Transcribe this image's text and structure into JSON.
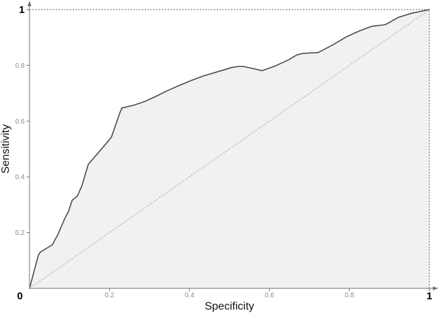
{
  "chart_data": {
    "type": "area",
    "title": "",
    "xlabel": "Specificity",
    "ylabel": "Sensitivity",
    "xlim": [
      0,
      1
    ],
    "ylim": [
      0,
      1
    ],
    "grid": false,
    "legend": "none",
    "origin_label": "0",
    "x_ticks": [
      {
        "v": 0.2,
        "label": "0.2",
        "emph": false
      },
      {
        "v": 0.4,
        "label": "0.4",
        "emph": false
      },
      {
        "v": 0.6,
        "label": "0.6",
        "emph": false
      },
      {
        "v": 0.8,
        "label": "0.8",
        "emph": false
      },
      {
        "v": 1,
        "label": "1",
        "emph": true
      }
    ],
    "y_ticks": [
      {
        "v": 0.2,
        "label": "0.2",
        "emph": false
      },
      {
        "v": 0.4,
        "label": "0.4",
        "emph": false
      },
      {
        "v": 0.6,
        "label": "0.6",
        "emph": false
      },
      {
        "v": 0.8,
        "label": "0.8",
        "emph": false
      },
      {
        "v": 1,
        "label": "1",
        "emph": true
      }
    ],
    "series": [
      {
        "name": "roc-curve",
        "type": "line",
        "filled": true,
        "points": [
          [
            0,
            0
          ],
          [
            0.022,
            0.118
          ],
          [
            0.027,
            0.13
          ],
          [
            0.057,
            0.156
          ],
          [
            0.063,
            0.172
          ],
          [
            0.07,
            0.19
          ],
          [
            0.088,
            0.25
          ],
          [
            0.098,
            0.277
          ],
          [
            0.103,
            0.3
          ],
          [
            0.107,
            0.317
          ],
          [
            0.113,
            0.323
          ],
          [
            0.12,
            0.332
          ],
          [
            0.131,
            0.368
          ],
          [
            0.147,
            0.445
          ],
          [
            0.152,
            0.453
          ],
          [
            0.198,
            0.53
          ],
          [
            0.205,
            0.543
          ],
          [
            0.226,
            0.63
          ],
          [
            0.231,
            0.647
          ],
          [
            0.26,
            0.657
          ],
          [
            0.288,
            0.67
          ],
          [
            0.315,
            0.688
          ],
          [
            0.34,
            0.706
          ],
          [
            0.37,
            0.725
          ],
          [
            0.405,
            0.746
          ],
          [
            0.435,
            0.762
          ],
          [
            0.47,
            0.777
          ],
          [
            0.505,
            0.792
          ],
          [
            0.522,
            0.796
          ],
          [
            0.535,
            0.796
          ],
          [
            0.582,
            0.781
          ],
          [
            0.615,
            0.798
          ],
          [
            0.648,
            0.82
          ],
          [
            0.668,
            0.837
          ],
          [
            0.684,
            0.843
          ],
          [
            0.722,
            0.846
          ],
          [
            0.758,
            0.873
          ],
          [
            0.792,
            0.902
          ],
          [
            0.826,
            0.924
          ],
          [
            0.856,
            0.94
          ],
          [
            0.89,
            0.946
          ],
          [
            0.922,
            0.972
          ],
          [
            0.956,
            0.987
          ],
          [
            1,
            1
          ]
        ]
      }
    ],
    "reference_lines": [
      {
        "name": "top-boundary",
        "from": [
          0,
          1
        ],
        "to": [
          1,
          1
        ],
        "style": "dashed"
      },
      {
        "name": "right-boundary",
        "from": [
          1,
          0
        ],
        "to": [
          1,
          1
        ],
        "style": "dashed"
      },
      {
        "name": "chance-diagonal",
        "from": [
          0,
          0
        ],
        "to": [
          1,
          1
        ],
        "style": "dotted"
      }
    ],
    "colors": {
      "curve": "#4a4a4a",
      "fill": "#f1f1f1",
      "axis": "#8a8a8a",
      "arrow": "#6e6e6e",
      "tick_label": "#8c8c8c",
      "emph_label": "#000000",
      "reference": "#555555",
      "background": "#ffffff"
    }
  }
}
